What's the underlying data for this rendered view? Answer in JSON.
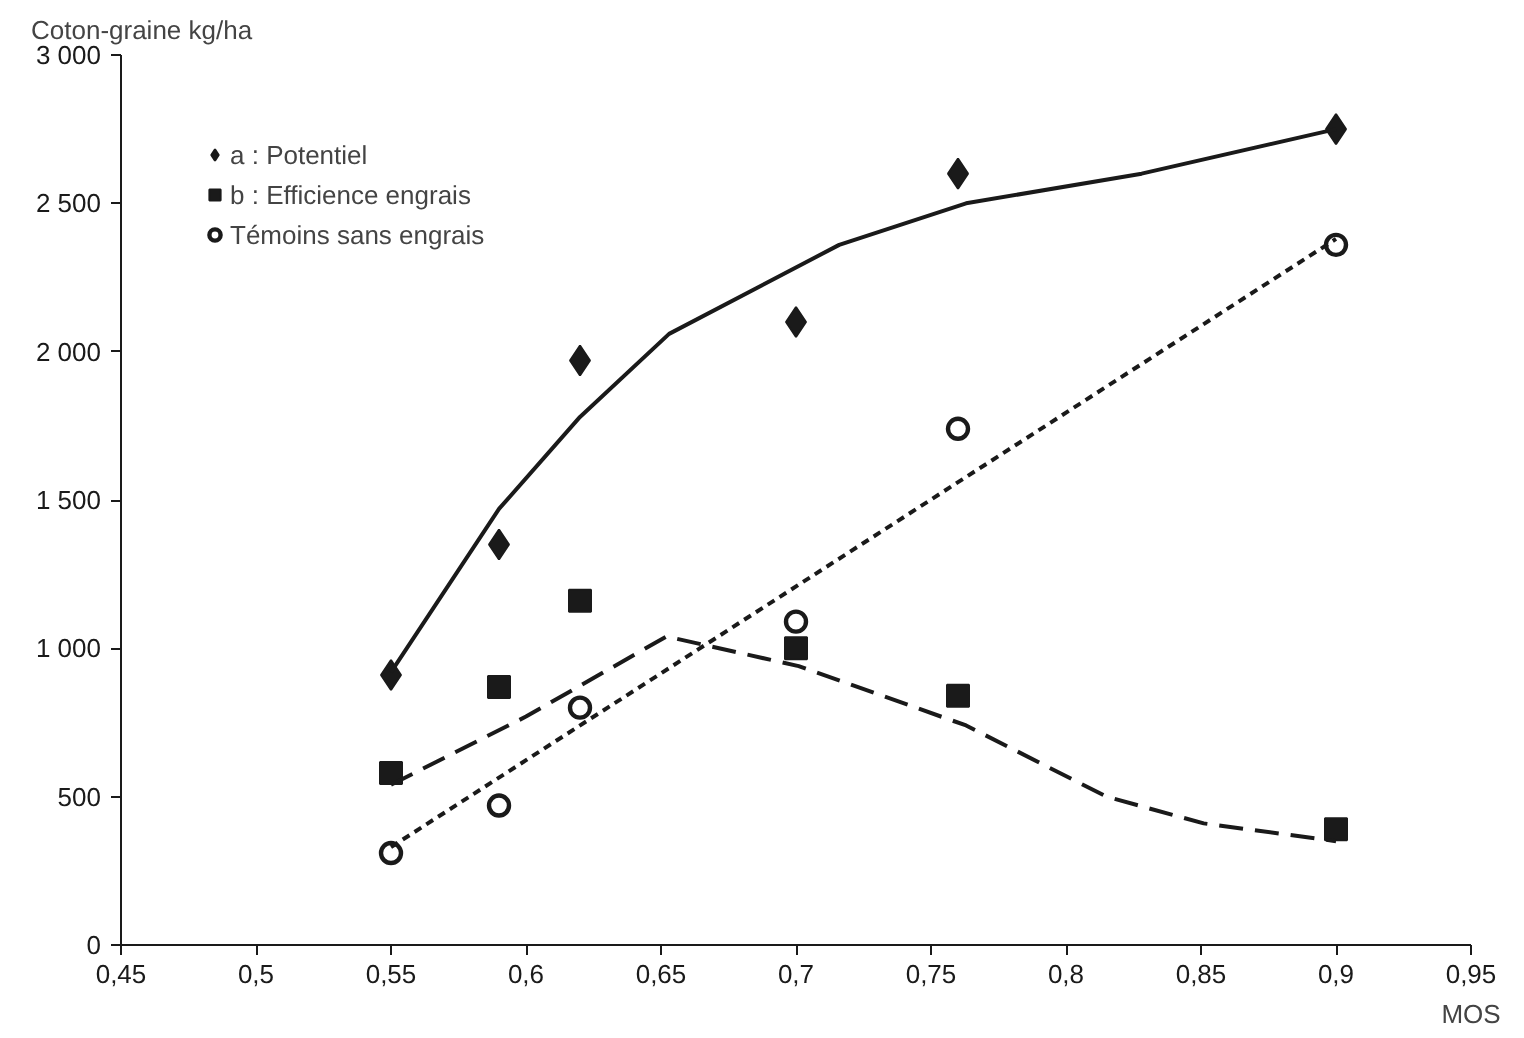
{
  "chart_data": {
    "type": "scatter",
    "ylabel": "Coton-graine kg/ha",
    "xlabel": "MOS",
    "xlim": [
      0.45,
      0.95
    ],
    "xticks": [
      {
        "value": 0.45,
        "label": "0,45"
      },
      {
        "value": 0.5,
        "label": "0,5"
      },
      {
        "value": 0.55,
        "label": "0,55"
      },
      {
        "value": 0.6,
        "label": "0,6"
      },
      {
        "value": 0.65,
        "label": "0,65"
      },
      {
        "value": 0.7,
        "label": "0,7"
      },
      {
        "value": 0.75,
        "label": "0,75"
      },
      {
        "value": 0.8,
        "label": "0,8"
      },
      {
        "value": 0.85,
        "label": "0,85"
      },
      {
        "value": 0.9,
        "label": "0,9"
      },
      {
        "value": 0.95,
        "label": "0,95"
      }
    ],
    "ylim": [
      0,
      3000
    ],
    "yticks": [
      0,
      {
        "value": 500,
        "label": "500"
      },
      {
        "value": 1000,
        "label": "1 000"
      },
      {
        "value": 1500,
        "label": "1 500"
      },
      {
        "value": 2000,
        "label": "2 000"
      },
      {
        "value": 2500,
        "label": "2 500"
      },
      {
        "value": 3000,
        "label": "3 000"
      }
    ],
    "grid": false,
    "legend": "top left",
    "x": [
      0.55,
      0.59,
      0.62,
      0.7,
      0.76,
      0.9
    ],
    "series": [
      {
        "name": "a : Potentiel",
        "color": "#1a1a1a",
        "marker": "diamond",
        "values": [
          910,
          1350,
          1970,
          2100,
          2600,
          2750
        ]
      },
      {
        "name": "b : Efficience engrais",
        "color": "#1a1a1a",
        "marker": "square",
        "values": [
          580,
          870,
          1160,
          1000,
          840,
          390
        ]
      },
      {
        "name": "Témoins sans engrais",
        "color": "#1a1a1a",
        "marker": "circle",
        "values": [
          310,
          470,
          800,
          1090,
          1740,
          2360
        ]
      },
      {
        "type": "line",
        "color": "#1a1a1a",
        "line_style": "solid",
        "marker": "none",
        "x": [
          0.55,
          0.59,
          0.62,
          0.653,
          0.716,
          0.763,
          0.828,
          0.9
        ],
        "values": [
          920,
          1470,
          1780,
          2060,
          2360,
          2500,
          2600,
          2750
        ]
      },
      {
        "type": "line",
        "color": "#1a1a1a",
        "line_style": "dashed",
        "marker": "none",
        "x": [
          0.55,
          0.6,
          0.652,
          0.701,
          0.763,
          0.815,
          0.851,
          0.9
        ],
        "values": [
          540,
          770,
          1040,
          940,
          740,
          500,
          410,
          350
        ]
      },
      {
        "type": "line",
        "color": "#1a1a1a",
        "line_style": "dotted",
        "marker": "none",
        "x": [
          0.55,
          0.9
        ],
        "values": [
          330,
          2380
        ]
      }
    ]
  }
}
